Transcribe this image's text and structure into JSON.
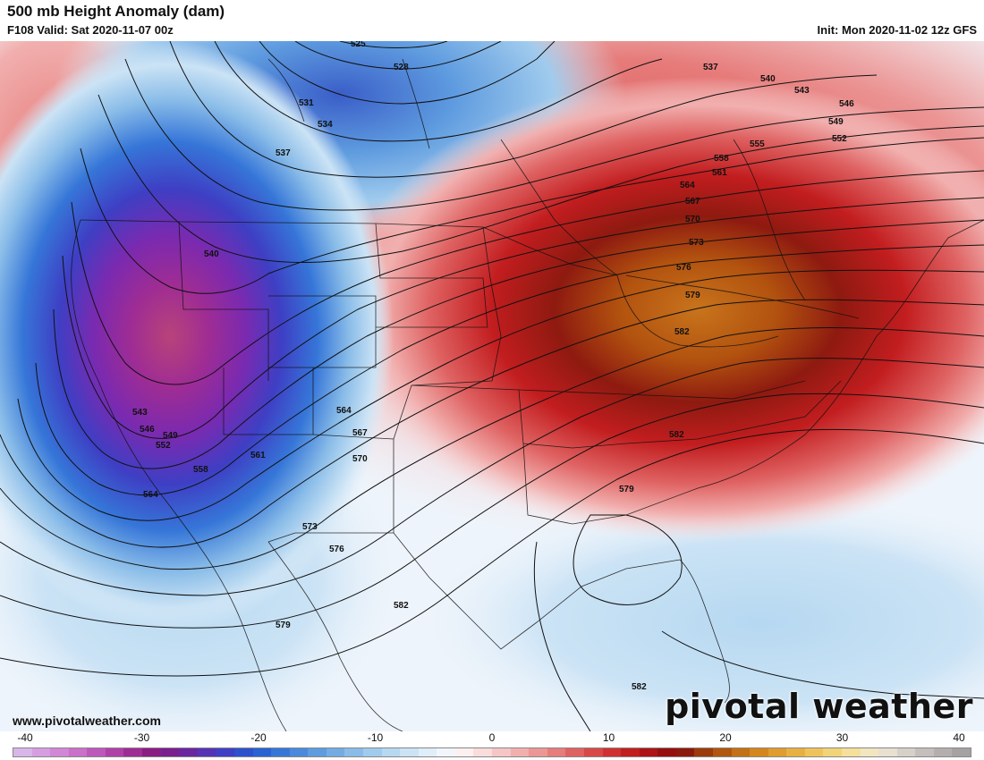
{
  "header": {
    "title": "500 mb Height Anomaly (dam)",
    "valid": "F108 Valid: Sat 2020-11-07 00z",
    "init": "Init: Mon 2020-11-02 12z GFS"
  },
  "footer": {
    "website": "www.pivotalweather.com",
    "brand": "pivotal weather"
  },
  "colorbar": {
    "min": -40,
    "max": 40,
    "tick_labels": [
      "-40",
      "-30",
      "-20",
      "-10",
      "0",
      "10",
      "20",
      "30",
      "40"
    ],
    "colors": [
      "#d9b5e8",
      "#d59ee0",
      "#d186d6",
      "#ca6fca",
      "#be57bb",
      "#b040a8",
      "#9e2c94",
      "#8a1c82",
      "#7a1d8e",
      "#6a25a0",
      "#5632b4",
      "#3e3fc4",
      "#2e50cf",
      "#2a62d4",
      "#3676d8",
      "#4a89dc",
      "#5e9bdf",
      "#73ace3",
      "#89bce8",
      "#a0cbed",
      "#b6d8f1",
      "#cbe3f5",
      "#dfeef9",
      "#f0f6fc",
      "#fdf0f0",
      "#fadcdc",
      "#f6c6c6",
      "#f1afae",
      "#ec9695",
      "#e67c7b",
      "#df6262",
      "#d84848",
      "#cf3031",
      "#c21d1f",
      "#ad1316",
      "#960e10",
      "#8c1a0c",
      "#9c3a0c",
      "#b0560e",
      "#c47014",
      "#d4861c",
      "#e09c2c",
      "#e8b040",
      "#eec45a",
      "#f2d478",
      "#f5e09a",
      "#f2e6c0",
      "#e8e0d0",
      "#d6d0c8",
      "#c4bebc",
      "#b4afae",
      "#a6a2a2"
    ]
  },
  "map": {
    "contour_labels": [
      {
        "text": "525"
      },
      {
        "text": "528"
      },
      {
        "text": "531"
      },
      {
        "text": "534"
      },
      {
        "text": "537"
      },
      {
        "text": "537"
      },
      {
        "text": "540"
      },
      {
        "text": "543"
      },
      {
        "text": "546"
      },
      {
        "text": "549"
      },
      {
        "text": "552"
      },
      {
        "text": "555"
      },
      {
        "text": "558"
      },
      {
        "text": "561"
      },
      {
        "text": "564"
      },
      {
        "text": "567"
      },
      {
        "text": "570"
      },
      {
        "text": "573"
      },
      {
        "text": "576"
      },
      {
        "text": "579"
      },
      {
        "text": "582"
      },
      {
        "text": "540"
      },
      {
        "text": "543"
      },
      {
        "text": "546"
      },
      {
        "text": "549"
      },
      {
        "text": "552"
      },
      {
        "text": "558"
      },
      {
        "text": "561"
      },
      {
        "text": "564"
      },
      {
        "text": "564"
      },
      {
        "text": "567"
      },
      {
        "text": "570"
      },
      {
        "text": "573"
      },
      {
        "text": "576"
      },
      {
        "text": "579"
      },
      {
        "text": "582"
      },
      {
        "text": "582"
      },
      {
        "text": "579"
      },
      {
        "text": "582"
      }
    ]
  }
}
